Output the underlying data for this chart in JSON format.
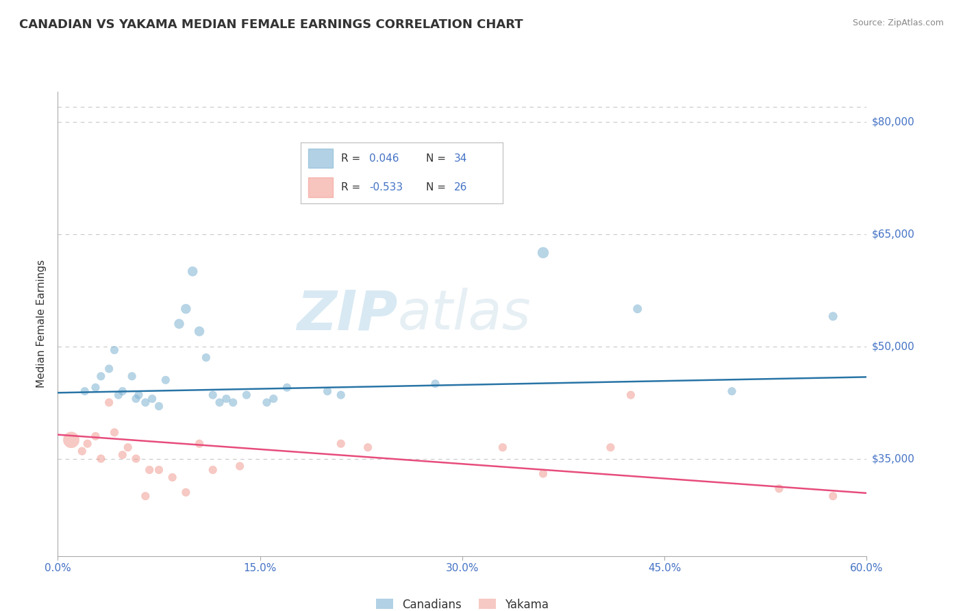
{
  "title": "CANADIAN VS YAKAMA MEDIAN FEMALE EARNINGS CORRELATION CHART",
  "source": "Source: ZipAtlas.com",
  "ylabel": "Median Female Earnings",
  "x_min": 0.0,
  "x_max": 0.6,
  "y_min": 22000,
  "y_max": 84000,
  "yticks": [
    35000,
    50000,
    65000,
    80000
  ],
  "ytick_labels": [
    "$35,000",
    "$50,000",
    "$65,000",
    "$80,000"
  ],
  "xticks": [
    0.0,
    0.15,
    0.3,
    0.45,
    0.6
  ],
  "xtick_labels": [
    "0.0%",
    "15.0%",
    "30.0%",
    "45.0%",
    "60.0%"
  ],
  "blue_color": "#7fb3d3",
  "pink_color": "#f1948a",
  "blue_line_color": "#2874a6",
  "pink_line_color": "#e74c7c",
  "legend_blue_R": "R =  0.046",
  "legend_blue_N": "N = 34",
  "legend_pink_R": "R = -0.533",
  "legend_pink_N": "N = 26",
  "legend_label_blue": "Canadians",
  "legend_label_pink": "Yakama",
  "watermark_zip": "ZIP",
  "watermark_atlas": "atlas",
  "blue_x": [
    0.02,
    0.028,
    0.032,
    0.038,
    0.042,
    0.045,
    0.048,
    0.055,
    0.058,
    0.06,
    0.065,
    0.07,
    0.075,
    0.08,
    0.09,
    0.095,
    0.1,
    0.105,
    0.11,
    0.115,
    0.12,
    0.125,
    0.13,
    0.14,
    0.155,
    0.16,
    0.17,
    0.2,
    0.21,
    0.28,
    0.36,
    0.43,
    0.5,
    0.575
  ],
  "blue_y": [
    44000,
    44500,
    46000,
    47000,
    49500,
    43500,
    44000,
    46000,
    43000,
    43500,
    42500,
    43000,
    42000,
    45500,
    53000,
    55000,
    60000,
    52000,
    48500,
    43500,
    42500,
    43000,
    42500,
    43500,
    42500,
    43000,
    44500,
    44000,
    43500,
    45000,
    62500,
    55000,
    44000,
    54000
  ],
  "blue_sizes": [
    70,
    70,
    70,
    70,
    70,
    70,
    70,
    70,
    70,
    70,
    70,
    70,
    70,
    70,
    100,
    100,
    100,
    100,
    70,
    70,
    70,
    70,
    70,
    70,
    70,
    70,
    70,
    70,
    70,
    70,
    130,
    80,
    70,
    80
  ],
  "pink_x": [
    0.01,
    0.018,
    0.022,
    0.028,
    0.032,
    0.038,
    0.042,
    0.048,
    0.052,
    0.058,
    0.065,
    0.068,
    0.075,
    0.085,
    0.095,
    0.105,
    0.115,
    0.135,
    0.21,
    0.23,
    0.33,
    0.36,
    0.41,
    0.425,
    0.535,
    0.575
  ],
  "pink_y": [
    37500,
    36000,
    37000,
    38000,
    35000,
    42500,
    38500,
    35500,
    36500,
    35000,
    30000,
    33500,
    33500,
    32500,
    30500,
    37000,
    33500,
    34000,
    37000,
    36500,
    36500,
    33000,
    36500,
    43500,
    31000,
    30000
  ],
  "pink_sizes": [
    280,
    70,
    70,
    70,
    70,
    70,
    70,
    70,
    70,
    70,
    70,
    70,
    70,
    70,
    70,
    70,
    70,
    70,
    70,
    70,
    70,
    70,
    70,
    70,
    70,
    70
  ],
  "blue_intercept": 43800,
  "blue_slope": 3500,
  "pink_intercept": 38200,
  "pink_slope": -13000,
  "background_color": "#ffffff",
  "grid_color": "#c8c8c8",
  "title_color": "#333333",
  "axis_color": "#4472c4",
  "source_color": "#888888",
  "legend_text_color": "#333333",
  "legend_value_color": "#4472c4"
}
